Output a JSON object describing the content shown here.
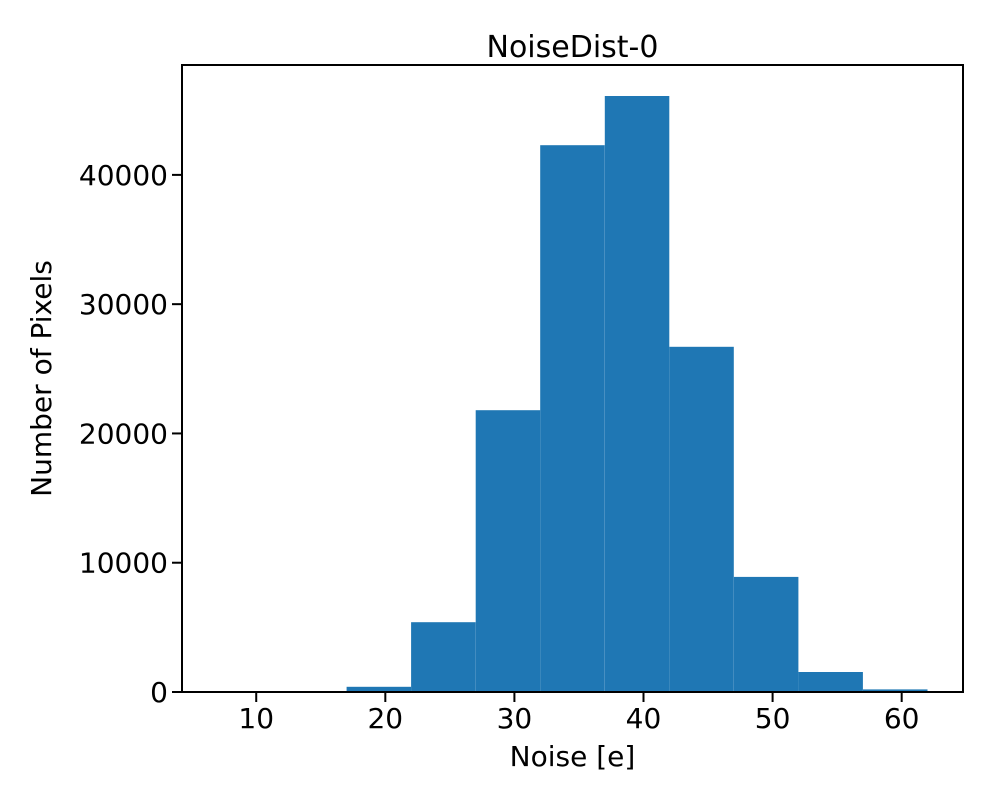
{
  "figure": {
    "background": "#ffffff",
    "foreground": "#000000"
  },
  "chart_data": {
    "type": "bar",
    "subtype": "histogram",
    "title": "NoiseDist-0",
    "xlabel": "Noise [e]",
    "ylabel": "Number of Pixels",
    "bar_color": "#1f77b4",
    "bin_edges": [
      7,
      12,
      17,
      22,
      27,
      32,
      37,
      42,
      47,
      52,
      57,
      62
    ],
    "counts": [
      0,
      0,
      400,
      5400,
      21800,
      42300,
      46100,
      26700,
      8900,
      1550,
      200
    ],
    "xlim": [
      4.25,
      64.75
    ],
    "ylim": [
      0,
      48500
    ],
    "xticks": [
      10,
      20,
      30,
      40,
      50,
      60
    ],
    "yticks": [
      0,
      10000,
      20000,
      30000,
      40000
    ],
    "grid": false,
    "legend": null
  }
}
